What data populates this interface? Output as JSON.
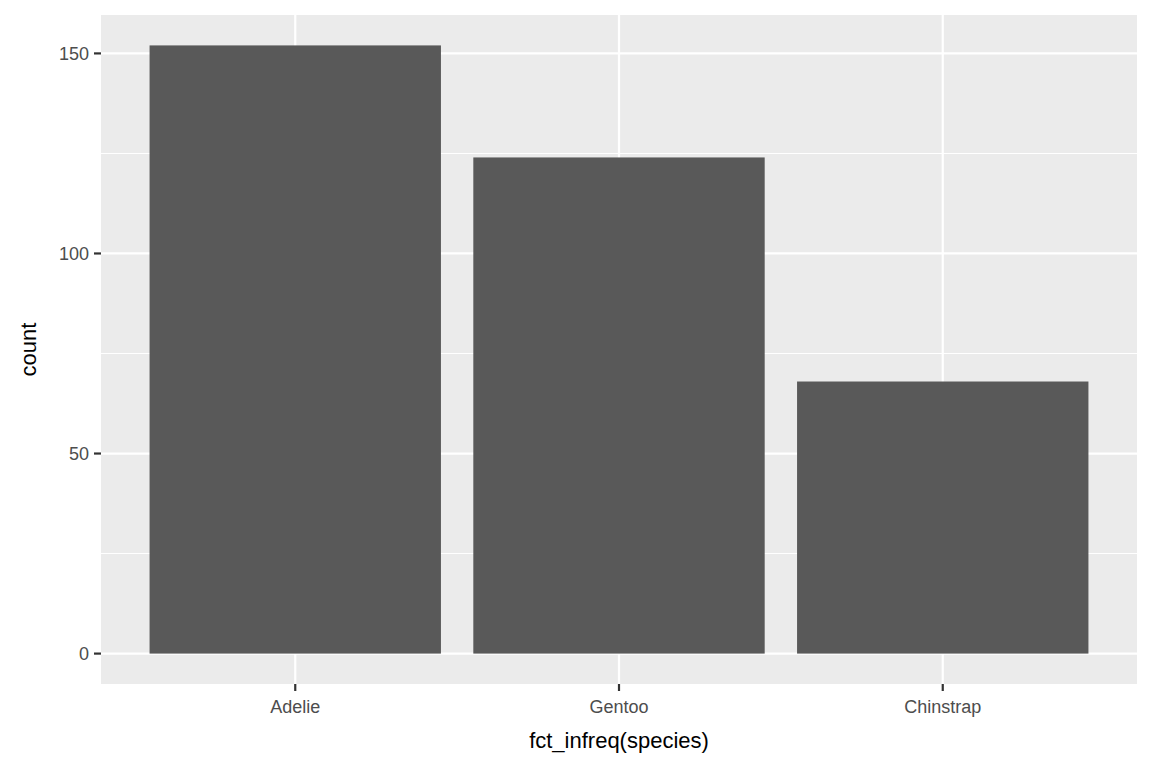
{
  "chart_data": {
    "type": "bar",
    "x_label": "fct_infreq(species)",
    "y_label": "count",
    "categories": [
      "Adelie",
      "Gentoo",
      "Chinstrap"
    ],
    "values": [
      152,
      124,
      68
    ],
    "color": "#595959",
    "ylim": [
      -7.6,
      159.6
    ],
    "yticks": [
      0,
      50,
      100,
      150
    ],
    "grid": true
  }
}
